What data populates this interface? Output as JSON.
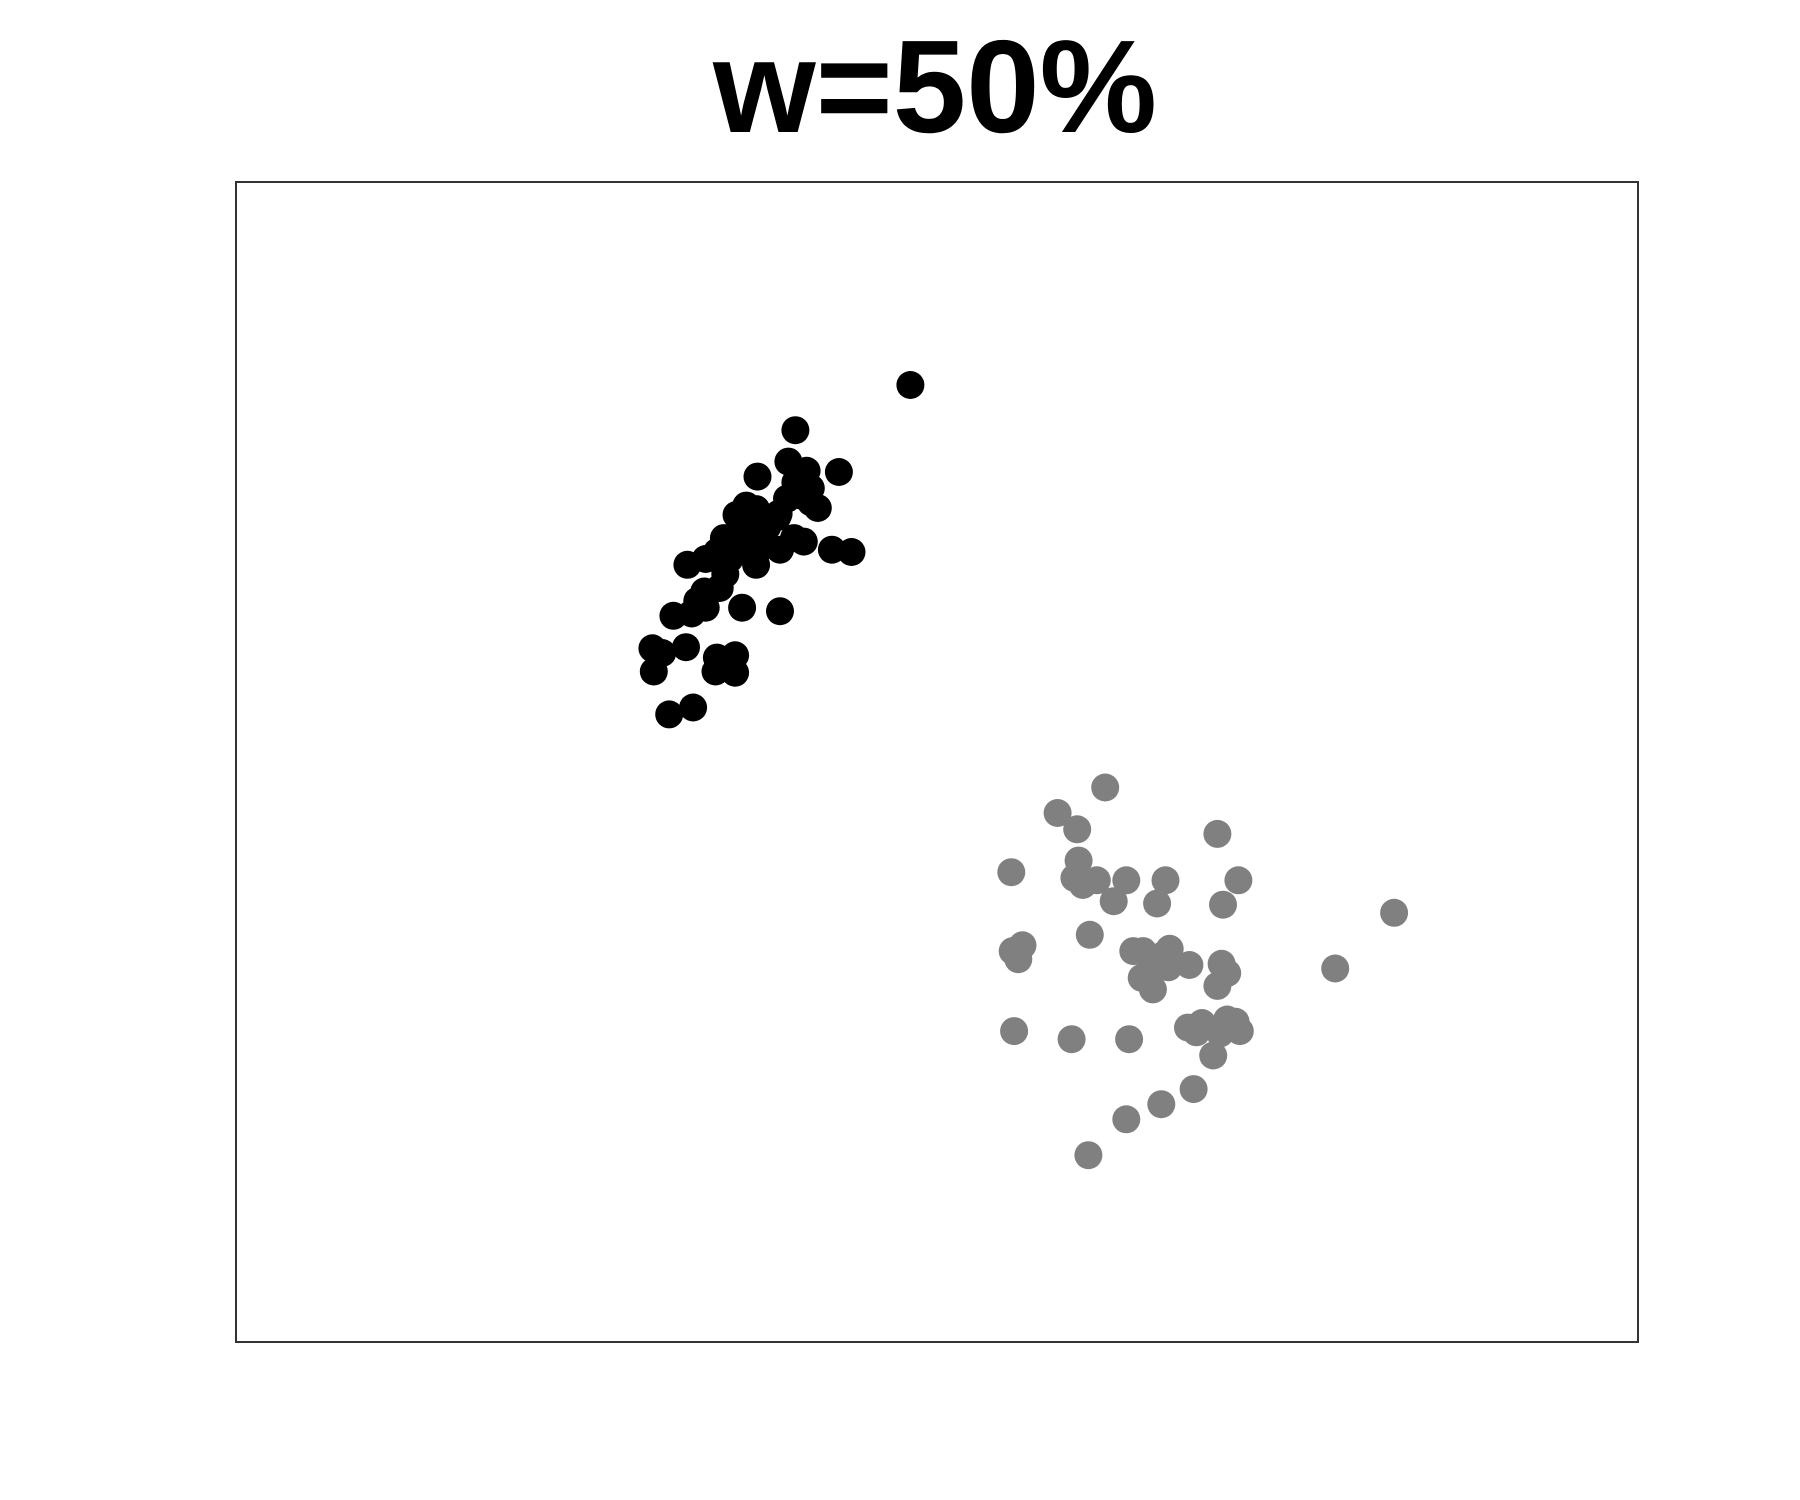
{
  "chart_data": {
    "type": "scatter",
    "title": "w=50%",
    "xlabel": "",
    "ylabel": "",
    "xlim": [
      0,
      10
    ],
    "ylim": [
      0,
      10
    ],
    "grid": false,
    "axes_ticks": false,
    "legend": "none",
    "series": [
      {
        "color": "#000000",
        "points": [
          [
            4.81,
            8.25
          ],
          [
            3.99,
            7.86
          ],
          [
            3.99,
            7.41
          ],
          [
            3.94,
            7.59
          ],
          [
            3.72,
            7.46
          ],
          [
            3.64,
            7.21
          ],
          [
            4.15,
            7.19
          ],
          [
            4.1,
            7.24
          ],
          [
            3.98,
            6.93
          ],
          [
            3.86,
            7.11
          ],
          [
            3.76,
            6.96
          ],
          [
            3.71,
            7.18
          ],
          [
            3.57,
            7.13
          ],
          [
            3.88,
            6.83
          ],
          [
            4.05,
            6.9
          ],
          [
            3.52,
            6.75
          ],
          [
            3.63,
            6.84
          ],
          [
            3.76,
            6.86
          ],
          [
            3.49,
            6.62
          ],
          [
            3.45,
            6.5
          ],
          [
            3.35,
            6.75
          ],
          [
            3.25,
            6.28
          ],
          [
            3.12,
            6.26
          ],
          [
            3.43,
            6.81
          ],
          [
            3.34,
            6.47
          ],
          [
            3.35,
            6.33
          ],
          [
            3.61,
            6.33
          ],
          [
            3.22,
            6.7
          ],
          [
            3.48,
            6.93
          ],
          [
            3.71,
            6.7
          ],
          [
            3.55,
            6.91
          ],
          [
            3.29,
            6.39
          ],
          [
            3.04,
            5.94
          ],
          [
            3.21,
            5.99
          ],
          [
            3.43,
            5.9
          ],
          [
            3.42,
            5.78
          ],
          [
            3.56,
            5.92
          ],
          [
            3.56,
            5.77
          ],
          [
            2.97,
            5.98
          ],
          [
            2.98,
            5.78
          ],
          [
            3.09,
            5.41
          ],
          [
            3.26,
            5.47
          ],
          [
            3.88,
            6.3
          ],
          [
            4.25,
            6.83
          ],
          [
            4.39,
            6.81
          ],
          [
            4.3,
            7.5
          ],
          [
            4.1,
            7.36
          ],
          [
            4.02,
            7.3
          ],
          [
            3.93,
            7.27
          ],
          [
            3.79,
            7.03
          ],
          [
            3.68,
            7.04
          ],
          [
            4.03,
            7.46
          ],
          [
            3.87,
            7.14
          ],
          [
            4.07,
            7.51
          ]
        ]
      },
      {
        "color": "#808080",
        "points": [
          [
            6.2,
            4.78
          ],
          [
            5.86,
            4.56
          ],
          [
            6.0,
            4.42
          ],
          [
            7.0,
            4.38
          ],
          [
            5.53,
            4.05
          ],
          [
            6.01,
            4.15
          ],
          [
            6.04,
            3.94
          ],
          [
            6.14,
            3.98
          ],
          [
            6.35,
            3.98
          ],
          [
            6.63,
            3.98
          ],
          [
            6.57,
            3.78
          ],
          [
            5.98,
            4.0
          ],
          [
            6.26,
            3.8
          ],
          [
            7.15,
            3.98
          ],
          [
            7.04,
            3.77
          ],
          [
            8.26,
            3.7
          ],
          [
            5.61,
            3.42
          ],
          [
            5.54,
            3.37
          ],
          [
            5.58,
            3.3
          ],
          [
            6.09,
            3.51
          ],
          [
            6.4,
            3.37
          ],
          [
            6.47,
            3.37
          ],
          [
            6.66,
            3.39
          ],
          [
            6.8,
            3.25
          ],
          [
            6.46,
            3.14
          ],
          [
            6.52,
            3.22
          ],
          [
            6.62,
            3.34
          ],
          [
            6.54,
            3.04
          ],
          [
            6.65,
            3.23
          ],
          [
            7.03,
            3.26
          ],
          [
            7.07,
            3.18
          ],
          [
            7.84,
            3.22
          ],
          [
            7.0,
            3.07
          ],
          [
            6.89,
            2.75
          ],
          [
            6.85,
            2.67
          ],
          [
            7.07,
            2.78
          ],
          [
            7.13,
            2.76
          ],
          [
            7.16,
            2.68
          ],
          [
            7.02,
            2.66
          ],
          [
            6.97,
            2.47
          ],
          [
            5.55,
            2.68
          ],
          [
            5.96,
            2.61
          ],
          [
            6.37,
            2.61
          ],
          [
            6.79,
            2.71
          ],
          [
            6.83,
            2.18
          ],
          [
            6.6,
            2.05
          ],
          [
            6.35,
            1.92
          ],
          [
            6.08,
            1.61
          ]
        ]
      }
    ]
  }
}
